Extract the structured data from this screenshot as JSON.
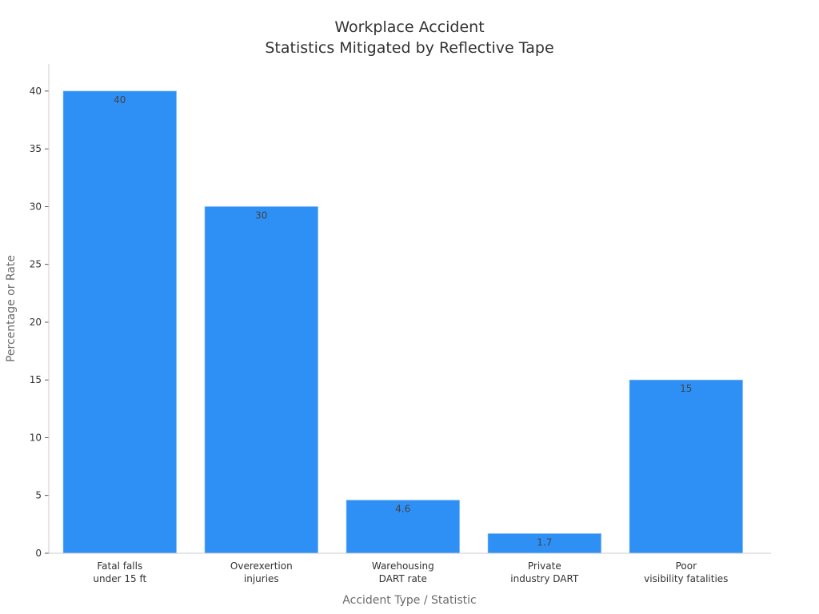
{
  "chart_data": {
    "type": "bar",
    "title": [
      "Workplace Accident",
      "Statistics Mitigated by Reflective Tape"
    ],
    "xlabel": "Accident Type / Statistic",
    "ylabel": "Percentage or Rate",
    "categories": [
      [
        "Fatal falls",
        "under 15 ft"
      ],
      [
        "Overexertion",
        "injuries"
      ],
      [
        "Warehousing",
        "DART rate"
      ],
      [
        "Private",
        "industry DART"
      ],
      [
        "Poor",
        "visibility fatalities"
      ]
    ],
    "values": [
      40,
      30,
      4.6,
      1.7,
      15
    ],
    "value_labels": [
      "40",
      "30",
      "4.6",
      "1.7",
      "15"
    ],
    "ylim": [
      0,
      42
    ],
    "yticks": [
      0,
      5,
      10,
      15,
      20,
      25,
      30,
      35,
      40
    ],
    "grid": false,
    "bar_color": "#2e90f5",
    "axis_color": "#cccccc"
  }
}
